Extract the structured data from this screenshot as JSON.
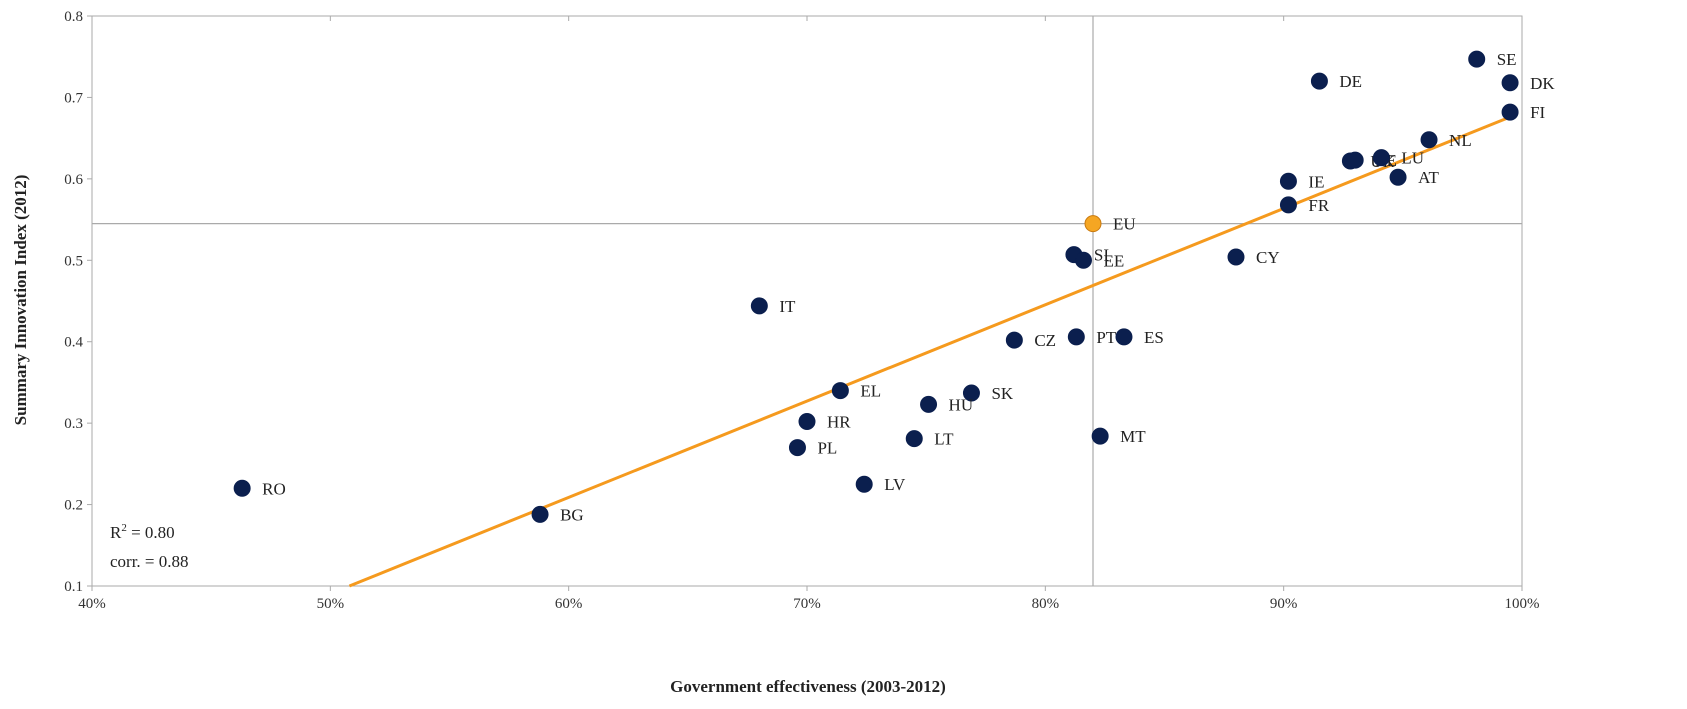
{
  "chart_data": {
    "type": "scatter",
    "xlabel": "Government effectiveness (2003-2012)",
    "ylabel": "Summary Innovation Index (2012)",
    "xlim": [
      0.4,
      1.0
    ],
    "ylim": [
      0.1,
      0.8
    ],
    "x_ticks": [
      0.4,
      0.5,
      0.6,
      0.7,
      0.8,
      0.9,
      1.0
    ],
    "x_tick_labels": [
      "40%",
      "50%",
      "60%",
      "70%",
      "80%",
      "90%",
      "100%"
    ],
    "y_ticks": [
      0.1,
      0.2,
      0.3,
      0.4,
      0.5,
      0.6,
      0.7,
      0.8
    ],
    "y_tick_labels": [
      "0.1",
      "0.2",
      "0.3",
      "0.4",
      "0.5",
      "0.6",
      "0.7",
      "0.8"
    ],
    "grid": false,
    "reference_lines": {
      "x": 0.82,
      "y": 0.545
    },
    "trendline": {
      "x": [
        0.508,
        0.995
      ],
      "y": [
        0.1,
        0.676
      ],
      "color": "#f59a1e"
    },
    "annotations": {
      "r2_prefix": "R",
      "r2_sup": "2",
      "r2_value": " = 0.80",
      "corr": "corr. = 0.88"
    },
    "colors": {
      "point": "#0b1f4e",
      "highlight": "#f5a623",
      "trend": "#f59a1e",
      "axis": "#aaaaaa"
    },
    "points": [
      {
        "label": "SE",
        "x": 0.981,
        "y": 0.747
      },
      {
        "label": "DK",
        "x": 0.995,
        "y": 0.718
      },
      {
        "label": "DE",
        "x": 0.915,
        "y": 0.72
      },
      {
        "label": "FI",
        "x": 0.995,
        "y": 0.682
      },
      {
        "label": "NL",
        "x": 0.961,
        "y": 0.648
      },
      {
        "label": "UK",
        "x": 0.928,
        "y": 0.622
      },
      {
        "label": "BE",
        "x": 0.93,
        "y": 0.623
      },
      {
        "label": "LU",
        "x": 0.941,
        "y": 0.626
      },
      {
        "label": "AT",
        "x": 0.948,
        "y": 0.602
      },
      {
        "label": "IE",
        "x": 0.902,
        "y": 0.597
      },
      {
        "label": "FR",
        "x": 0.902,
        "y": 0.568
      },
      {
        "label": "EU",
        "x": 0.82,
        "y": 0.545,
        "highlight": true
      },
      {
        "label": "SI",
        "x": 0.812,
        "y": 0.507
      },
      {
        "label": "EE",
        "x": 0.816,
        "y": 0.5
      },
      {
        "label": "CY",
        "x": 0.88,
        "y": 0.504
      },
      {
        "label": "IT",
        "x": 0.68,
        "y": 0.444
      },
      {
        "label": "CZ",
        "x": 0.787,
        "y": 0.402
      },
      {
        "label": "PT",
        "x": 0.813,
        "y": 0.406
      },
      {
        "label": "ES",
        "x": 0.833,
        "y": 0.406
      },
      {
        "label": "EL",
        "x": 0.714,
        "y": 0.34
      },
      {
        "label": "SK",
        "x": 0.769,
        "y": 0.337
      },
      {
        "label": "HU",
        "x": 0.751,
        "y": 0.323
      },
      {
        "label": "HR",
        "x": 0.7,
        "y": 0.302
      },
      {
        "label": "PL",
        "x": 0.696,
        "y": 0.27
      },
      {
        "label": "LT",
        "x": 0.745,
        "y": 0.281
      },
      {
        "label": "MT",
        "x": 0.823,
        "y": 0.284
      },
      {
        "label": "LV",
        "x": 0.724,
        "y": 0.225
      },
      {
        "label": "RO",
        "x": 0.463,
        "y": 0.22
      },
      {
        "label": "BG",
        "x": 0.588,
        "y": 0.188
      }
    ]
  }
}
